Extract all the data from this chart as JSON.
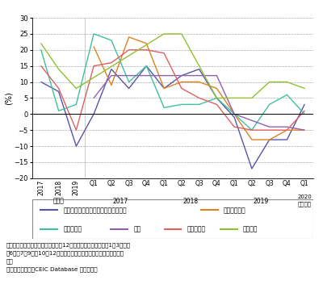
{
  "series": [
    {
      "name": "シンガポール（石油・再輸出を除く）",
      "color": "#5555aa",
      "values": [
        10,
        7,
        -10,
        0,
        14,
        8,
        15,
        8,
        12,
        14,
        5,
        -1,
        -17,
        -8,
        -8,
        3
      ]
    },
    {
      "name": "インドネシア",
      "color": "#e08020",
      "values": [
        null,
        null,
        null,
        21,
        9,
        24,
        22,
        8,
        10,
        10,
        8,
        0,
        -8,
        -8,
        -5,
        -5
      ]
    },
    {
      "name": "フィリピン",
      "color": "#40c0a0",
      "values": [
        20,
        1,
        3,
        25,
        23,
        10,
        15,
        2,
        3,
        3,
        5,
        0,
        -5,
        3,
        6,
        0
      ]
    },
    {
      "name": "タイ",
      "color": "#9060b0",
      "values": [
        null,
        null,
        null,
        5,
        12,
        12,
        12,
        12,
        12,
        12,
        12,
        0,
        -2,
        -4,
        -4,
        -5
      ]
    },
    {
      "name": "マレーシア",
      "color": "#e06060",
      "values": [
        15,
        8,
        -5,
        15,
        16,
        20,
        20,
        19,
        8,
        5,
        3,
        -4,
        -5,
        -5,
        -5,
        1
      ]
    },
    {
      "name": "ベトナム",
      "color": "#90c030",
      "values": [
        22,
        14,
        8,
        null,
        null,
        null,
        null,
        25,
        25,
        15,
        5,
        5,
        5,
        10,
        10,
        8
      ]
    }
  ],
  "ylim": [
    -20,
    30
  ],
  "yticks": [
    -20,
    -15,
    -10,
    -5,
    0,
    5,
    10,
    15,
    20,
    25,
    30
  ],
  "ylabel": "(%)",
  "grid_color": "#aaaaaa",
  "note1": "備考：米ドルベースの各月データは12か月ごと、３か月ごと（1〜3月、４",
  "note2": "〜6月、7〜9月、10〜12月）に合算し、前年比、前年同期比を求め",
  "note3": "た。",
  "source": "資料：各国統計、CEIC Database から作成。"
}
